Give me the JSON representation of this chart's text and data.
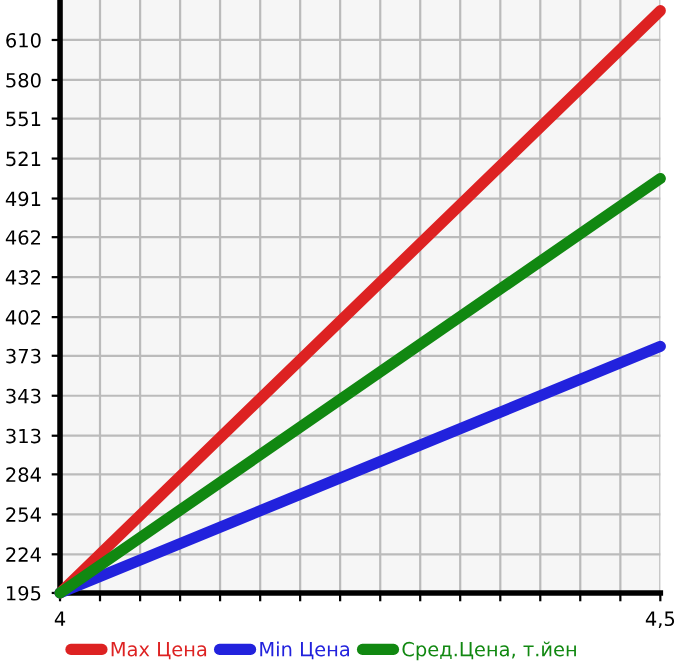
{
  "chart_data": {
    "type": "line",
    "x": [
      4,
      4.5
    ],
    "series": [
      {
        "name": "Max Цена",
        "color": "#dd2222",
        "values": [
          195,
          632
        ]
      },
      {
        "name": "Min Цена",
        "color": "#2222dd",
        "values": [
          195,
          380
        ]
      },
      {
        "name": "Сред.Цена, т.йен",
        "color": "#118811",
        "values": [
          195,
          506
        ]
      }
    ],
    "xlim": [
      4,
      4.5
    ],
    "xticks": [
      {
        "value": 4,
        "label": "4"
      },
      {
        "value": 4.0333,
        "label": null
      },
      {
        "value": 4.0667,
        "label": null
      },
      {
        "value": 4.1,
        "label": null
      },
      {
        "value": 4.1333,
        "label": null
      },
      {
        "value": 4.1667,
        "label": null
      },
      {
        "value": 4.2,
        "label": null
      },
      {
        "value": 4.2333,
        "label": null
      },
      {
        "value": 4.2667,
        "label": null
      },
      {
        "value": 4.3,
        "label": null
      },
      {
        "value": 4.3333,
        "label": null
      },
      {
        "value": 4.3667,
        "label": null
      },
      {
        "value": 4.4,
        "label": null
      },
      {
        "value": 4.4333,
        "label": null
      },
      {
        "value": 4.4667,
        "label": null
      },
      {
        "value": 4.5,
        "label": "4,5"
      }
    ],
    "ylim": [
      195,
      640
    ],
    "yticks": [
      195,
      224,
      254,
      284,
      313,
      343,
      373,
      402,
      432,
      462,
      491,
      521,
      551,
      580,
      610
    ],
    "grid": true,
    "legend": "bottom",
    "marker": "none",
    "line_style": "solid"
  }
}
